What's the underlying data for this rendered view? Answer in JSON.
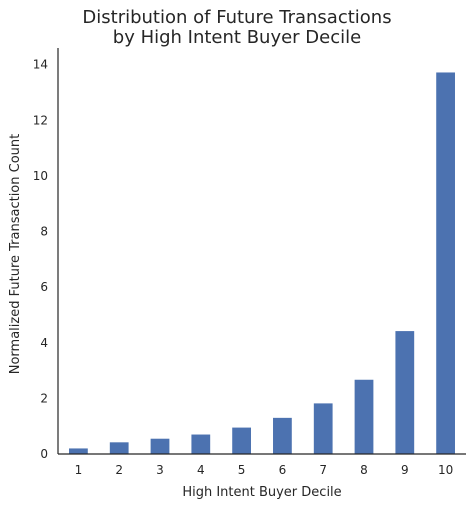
{
  "chart_data": {
    "type": "bar",
    "title": [
      "Distribution of Future Transactions",
      "by High Intent Buyer Decile"
    ],
    "xlabel": "High Intent Buyer Decile",
    "ylabel": "Normalized Future Transaction Count",
    "categories": [
      "1",
      "2",
      "3",
      "4",
      "5",
      "6",
      "7",
      "8",
      "9",
      "10"
    ],
    "values": [
      0.2,
      0.42,
      0.55,
      0.7,
      0.95,
      1.3,
      1.82,
      2.67,
      4.42,
      13.72
    ],
    "ylim": [
      0,
      14.6
    ],
    "yticks": [
      "0",
      "2",
      "4",
      "6",
      "8",
      "10",
      "12",
      "14"
    ],
    "grid": false,
    "bar_color": "#4c72b0"
  }
}
